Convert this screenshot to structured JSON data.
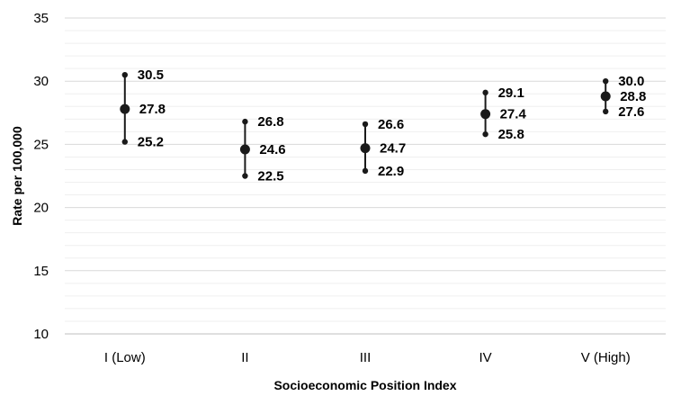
{
  "chart_data": {
    "type": "scatter",
    "title": "",
    "xlabel": "Socioeconomic Position Index",
    "ylabel": "Rate per 100,000",
    "categories": [
      "I (Low)",
      "II",
      "III",
      "IV",
      "V (High)"
    ],
    "estimate": [
      27.8,
      24.6,
      24.7,
      27.4,
      28.8
    ],
    "upper": [
      30.5,
      26.8,
      26.6,
      29.1,
      30.0
    ],
    "lower": [
      25.2,
      22.5,
      22.9,
      25.8,
      27.6
    ],
    "estimate_labels": [
      "27.8",
      "24.6",
      "24.7",
      "27.4",
      "28.8"
    ],
    "upper_labels": [
      "30.5",
      "26.8",
      "26.6",
      "29.1",
      "30.0"
    ],
    "lower_labels": [
      "25.2",
      "22.5",
      "22.9",
      "25.8",
      "27.6"
    ],
    "ylim": [
      10,
      35
    ],
    "yticks": [
      "10",
      "15",
      "20",
      "25",
      "30",
      "35"
    ],
    "grid": true,
    "legend": "none",
    "colors": {
      "marker": "#1a1a1a",
      "gridline": "#d9d9d9",
      "axis": "#bfbfbf"
    }
  }
}
